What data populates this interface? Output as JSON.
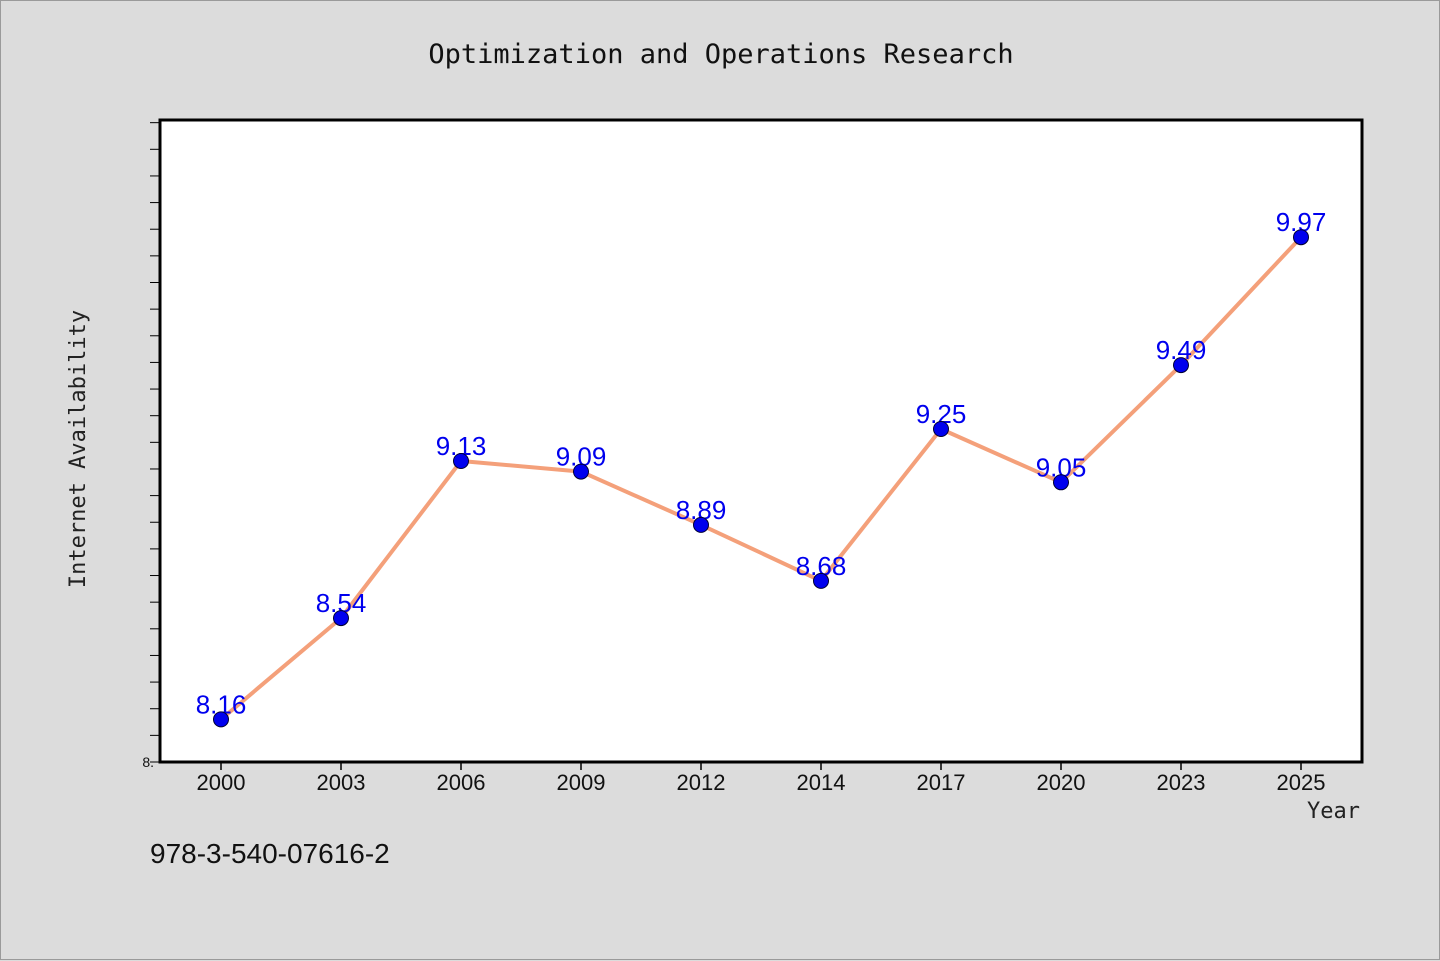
{
  "page": {
    "background": "#dcdcdc",
    "footer_text": "978-3-540-07616-2"
  },
  "chart_data": {
    "type": "line",
    "title": "Optimization and Operations Research",
    "xlabel": "Year",
    "ylabel": "Internet Availability",
    "categories": [
      "2000",
      "2003",
      "2006",
      "2009",
      "2012",
      "2014",
      "2017",
      "2020",
      "2023",
      "2025"
    ],
    "series": [
      {
        "values": [
          8.16,
          8.54,
          9.13,
          9.09,
          8.89,
          8.68,
          9.25,
          9.05,
          9.49,
          9.97
        ],
        "data_labels": [
          "8.16",
          "8.54",
          "9.13",
          "9.09",
          "8.89",
          "8.68",
          "9.25",
          "9.05",
          "9.49",
          "9.97"
        ],
        "line_color": "#f4a07a",
        "marker_color": "#0000ee"
      }
    ],
    "ylim": [
      8.0,
      10.41
    ],
    "yticks_minor_step": 0.1,
    "ytick_label": "8.",
    "grid": false,
    "legend": "none",
    "plot_background": "#ffffff"
  }
}
